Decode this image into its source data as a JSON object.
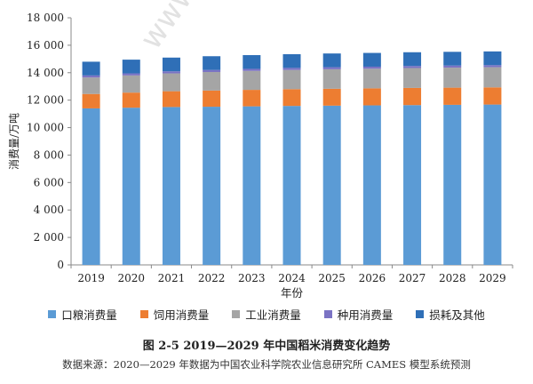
{
  "watermark": "www.agri",
  "caption": "图 2-5   2019—2029 年中国稻米消费变化趋势",
  "source": "数据来源：2020—2029 年数据为中国农业科学院农业信息研究所 CAMES 模型系统预测",
  "chart_data": {
    "type": "bar",
    "stacked": true,
    "xlabel": "年份",
    "ylabel": "消费量/万吨",
    "ylim": [
      0,
      18000
    ],
    "yticks": [
      0,
      2000,
      4000,
      6000,
      8000,
      10000,
      12000,
      14000,
      16000,
      18000
    ],
    "ytick_labels": [
      "0",
      "2 000",
      "4 000",
      "6 000",
      "8 000",
      "10 000",
      "12 000",
      "14 000",
      "16 000",
      "18 000"
    ],
    "grid": false,
    "legend_position": "bottom",
    "categories": [
      "2019",
      "2020",
      "2021",
      "2022",
      "2023",
      "2024",
      "2025",
      "2026",
      "2027",
      "2028",
      "2029"
    ],
    "series": [
      {
        "name": "口粮消费量",
        "color": "#5b9bd5",
        "values": [
          11400,
          11450,
          11500,
          11520,
          11550,
          11580,
          11600,
          11620,
          11640,
          11660,
          11680
        ]
      },
      {
        "name": "饲用消费量",
        "color": "#ed7d31",
        "values": [
          1050,
          1100,
          1150,
          1180,
          1200,
          1220,
          1230,
          1240,
          1250,
          1250,
          1250
        ]
      },
      {
        "name": "工业消费量",
        "color": "#a5a5a5",
        "values": [
          1200,
          1250,
          1300,
          1350,
          1380,
          1400,
          1420,
          1430,
          1450,
          1460,
          1470
        ]
      },
      {
        "name": "种用消费量",
        "color": "#7b73c4",
        "values": [
          150,
          150,
          150,
          150,
          150,
          150,
          150,
          150,
          150,
          150,
          150
        ]
      },
      {
        "name": "损耗及其他",
        "color": "#2f6fb7",
        "values": [
          1000,
          1000,
          1000,
          1000,
          1000,
          1000,
          1000,
          1000,
          1000,
          1000,
          1000
        ]
      }
    ]
  }
}
